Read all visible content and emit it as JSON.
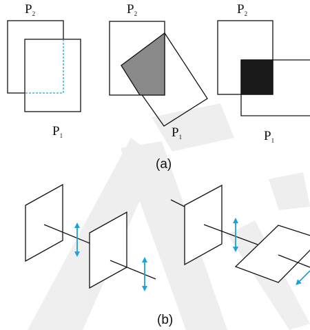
{
  "labels": {
    "p": "P",
    "sub2": "2",
    "sub1": "1",
    "caption_a": "(a)",
    "caption_b": "(b)"
  },
  "colors": {
    "line": "#111111",
    "dashed": "#1aa3d9",
    "arrow": "#1aa3d9",
    "gray_fill": "#8a8a8a",
    "black_fill": "#1a1a1a",
    "watermark": "#e7e7e7"
  },
  "icons": {
    "arrow": "double-headed-arrow-icon"
  }
}
